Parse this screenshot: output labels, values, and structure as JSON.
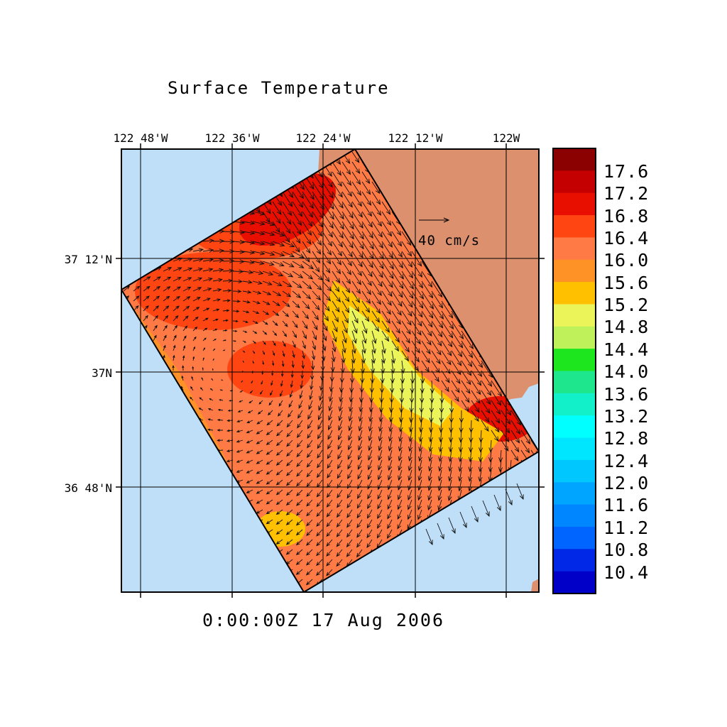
{
  "title": "Surface Temperature",
  "timestamp": "0:00:00Z  17 Aug 2006",
  "longitude_labels": [
    "122 48'W",
    "122 36'W",
    "122 24'W",
    "122 12'W",
    "122W"
  ],
  "latitude_labels": [
    "37 12'N",
    "37N",
    "36 48'N"
  ],
  "vector_scale": {
    "label": "40 cm/s"
  },
  "colorbar": {
    "labels": [
      "17.6",
      "17.2",
      "16.8",
      "16.4",
      "16.0",
      "15.6",
      "15.2",
      "14.8",
      "14.4",
      "14.0",
      "13.6",
      "13.2",
      "12.8",
      "12.4",
      "12.0",
      "11.6",
      "11.2",
      "10.8",
      "10.4"
    ],
    "colors": [
      "#8b0000",
      "#c40000",
      "#e80e00",
      "#ff4512",
      "#ff7a45",
      "#ff9226",
      "#ffc000",
      "#ebf55a",
      "#bff25a",
      "#1ee61e",
      "#1ee68c",
      "#11f0c8",
      "#00ffff",
      "#00e6ff",
      "#00c8ff",
      "#00a5ff",
      "#0087ff",
      "#0064ff",
      "#0028e6",
      "#0000c8"
    ]
  },
  "colors": {
    "ocean": "#bfdff9",
    "land": "#dc906e",
    "frame": "#000000"
  }
}
